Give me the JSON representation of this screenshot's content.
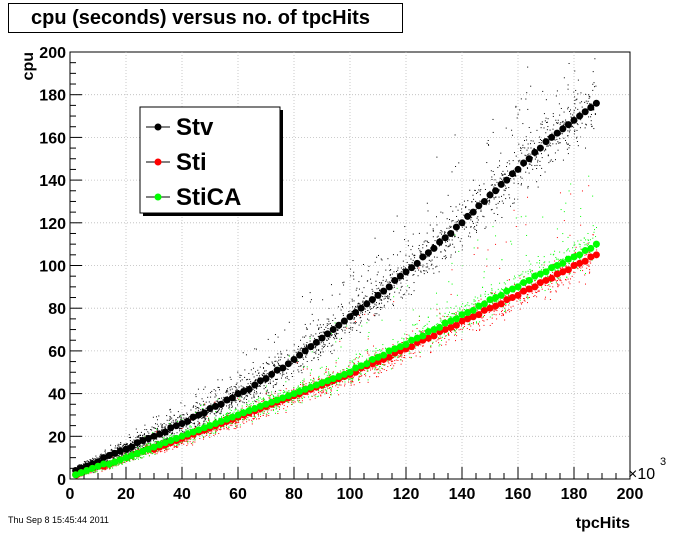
{
  "chart_data": {
    "type": "scatter",
    "title": "cpu (seconds) versus no. of tpcHits",
    "xlabel": "tpcHits",
    "ylabel": "cpu",
    "x_multiplier_label": "×10",
    "x_multiplier_exp": "3",
    "xlim": [
      0,
      200
    ],
    "ylim": [
      0,
      200
    ],
    "x_ticks": [
      0,
      20,
      40,
      60,
      80,
      100,
      120,
      140,
      160,
      180,
      200
    ],
    "y_ticks": [
      0,
      20,
      40,
      60,
      80,
      100,
      120,
      140,
      160,
      180,
      200
    ],
    "grid": true,
    "legend_position": "top-left",
    "series": [
      {
        "name": "Stv",
        "color": "#000000",
        "x": [
          2,
          4,
          6,
          8,
          10,
          12,
          14,
          16,
          18,
          20,
          22,
          24,
          26,
          28,
          30,
          32,
          34,
          36,
          38,
          40,
          42,
          44,
          46,
          48,
          50,
          52,
          54,
          56,
          58,
          60,
          62,
          64,
          66,
          68,
          70,
          72,
          74,
          76,
          78,
          80,
          82,
          84,
          86,
          88,
          90,
          92,
          94,
          96,
          98,
          100,
          102,
          104,
          106,
          108,
          110,
          112,
          114,
          116,
          118,
          120,
          122,
          124,
          126,
          128,
          130,
          132,
          134,
          136,
          138,
          140,
          142,
          144,
          146,
          148,
          150,
          152,
          154,
          156,
          158,
          160,
          162,
          164,
          166,
          168,
          170,
          172,
          174,
          176,
          178,
          180,
          182,
          184,
          186,
          188
        ],
        "y": [
          4,
          5,
          6,
          7,
          8,
          10,
          11,
          12,
          13,
          14,
          15,
          17,
          18,
          19,
          20,
          21,
          22,
          24,
          25,
          26,
          27,
          29,
          30,
          31,
          33,
          34,
          35,
          37,
          38,
          40,
          41,
          42,
          44,
          46,
          47,
          49,
          51,
          52,
          54,
          56,
          58,
          60,
          62,
          64,
          66,
          68,
          70,
          72,
          74,
          76,
          78,
          80,
          82,
          84,
          86,
          88,
          90,
          93,
          95,
          97,
          99,
          101,
          104,
          106,
          108,
          111,
          113,
          115,
          118,
          120,
          123,
          125,
          128,
          130,
          133,
          135,
          138,
          140,
          143,
          145,
          148,
          150,
          153,
          155,
          158,
          160,
          162,
          164,
          166,
          168,
          170,
          172,
          174,
          176
        ],
        "err": [
          1,
          1,
          1,
          1,
          1,
          1,
          1,
          1,
          1,
          1,
          1,
          1,
          1,
          1,
          1,
          1,
          1,
          1,
          1,
          1,
          1,
          1,
          1,
          1,
          1,
          1,
          1,
          1,
          1,
          1,
          1,
          1,
          1,
          1,
          1,
          1,
          1,
          1,
          1,
          1,
          1,
          1,
          1,
          1,
          1,
          1,
          1,
          1,
          1,
          1,
          1,
          1,
          1,
          1,
          1,
          1,
          1,
          1,
          1,
          1,
          1,
          1,
          1,
          1,
          1,
          1,
          1,
          1,
          1,
          1,
          1,
          1,
          1,
          1,
          1,
          1,
          1,
          1,
          1,
          1,
          1,
          1,
          1,
          1,
          1,
          1,
          1,
          1,
          1,
          1,
          1,
          1,
          1,
          1
        ]
      },
      {
        "name": "Sti",
        "color": "#ff0000",
        "x": [
          2,
          4,
          6,
          8,
          10,
          12,
          14,
          16,
          18,
          20,
          22,
          24,
          26,
          28,
          30,
          32,
          34,
          36,
          38,
          40,
          42,
          44,
          46,
          48,
          50,
          52,
          54,
          56,
          58,
          60,
          62,
          64,
          66,
          68,
          70,
          72,
          74,
          76,
          78,
          80,
          82,
          84,
          86,
          88,
          90,
          92,
          94,
          96,
          98,
          100,
          102,
          104,
          106,
          108,
          110,
          112,
          114,
          116,
          118,
          120,
          122,
          124,
          126,
          128,
          130,
          132,
          134,
          136,
          138,
          140,
          142,
          144,
          146,
          148,
          150,
          152,
          154,
          156,
          158,
          160,
          162,
          164,
          166,
          168,
          170,
          172,
          174,
          176,
          178,
          180,
          182,
          184,
          186,
          188
        ],
        "y": [
          2,
          3,
          4,
          5,
          6,
          6,
          7,
          8,
          9,
          10,
          11,
          12,
          13,
          14,
          14,
          15,
          16,
          17,
          18,
          19,
          20,
          21,
          22,
          23,
          24,
          25,
          26,
          27,
          28,
          29,
          30,
          31,
          32,
          33,
          34,
          35,
          36,
          37,
          38,
          39,
          40,
          41,
          42,
          43,
          44,
          45,
          46,
          47,
          48,
          49,
          50,
          52,
          53,
          54,
          55,
          56,
          57,
          59,
          60,
          61,
          62,
          64,
          65,
          66,
          67,
          69,
          70,
          71,
          72,
          74,
          75,
          76,
          77,
          79,
          80,
          81,
          82,
          84,
          85,
          86,
          88,
          89,
          90,
          92,
          93,
          94,
          96,
          97,
          98,
          100,
          101,
          102,
          104,
          105
        ],
        "err": [
          1,
          1,
          1,
          1,
          1,
          1,
          1,
          1,
          1,
          1,
          1,
          1,
          1,
          1,
          1,
          1,
          1,
          1,
          1,
          1,
          1,
          1,
          1,
          1,
          1,
          1,
          1,
          1,
          1,
          1,
          1,
          1,
          1,
          1,
          1,
          1,
          1,
          1,
          1,
          1,
          1,
          1,
          1,
          1,
          1,
          1,
          1,
          1,
          1,
          1,
          1,
          1,
          1,
          1,
          1,
          1,
          1,
          1,
          1,
          1,
          1,
          1,
          1,
          1,
          1,
          1,
          1,
          1,
          1,
          1,
          1,
          1,
          1,
          1,
          1,
          1,
          1,
          1,
          1,
          1,
          1,
          1,
          1,
          1,
          1,
          1,
          1,
          1,
          1,
          1,
          1,
          1,
          1,
          1
        ]
      },
      {
        "name": "StiCA",
        "color": "#00ff00",
        "x": [
          2,
          4,
          6,
          8,
          10,
          12,
          14,
          16,
          18,
          20,
          22,
          24,
          26,
          28,
          30,
          32,
          34,
          36,
          38,
          40,
          42,
          44,
          46,
          48,
          50,
          52,
          54,
          56,
          58,
          60,
          62,
          64,
          66,
          68,
          70,
          72,
          74,
          76,
          78,
          80,
          82,
          84,
          86,
          88,
          90,
          92,
          94,
          96,
          98,
          100,
          102,
          104,
          106,
          108,
          110,
          112,
          114,
          116,
          118,
          120,
          122,
          124,
          126,
          128,
          130,
          132,
          134,
          136,
          138,
          140,
          142,
          144,
          146,
          148,
          150,
          152,
          154,
          156,
          158,
          160,
          162,
          164,
          166,
          168,
          170,
          172,
          174,
          176,
          178,
          180,
          182,
          184,
          186,
          188
        ],
        "y": [
          2,
          3,
          4,
          5,
          6,
          7,
          7,
          8,
          9,
          10,
          11,
          12,
          13,
          14,
          15,
          16,
          17,
          18,
          19,
          20,
          21,
          22,
          23,
          24,
          25,
          26,
          27,
          28,
          29,
          30,
          31,
          32,
          33,
          34,
          35,
          36,
          37,
          38,
          39,
          40,
          41,
          42,
          43,
          44,
          45,
          46,
          47,
          48,
          49,
          50,
          52,
          53,
          54,
          56,
          57,
          58,
          60,
          61,
          62,
          63,
          65,
          66,
          67,
          69,
          70,
          71,
          73,
          74,
          75,
          77,
          78,
          79,
          81,
          82,
          84,
          85,
          86,
          88,
          89,
          90,
          92,
          93,
          95,
          96,
          97,
          99,
          100,
          101,
          103,
          104,
          105,
          107,
          108,
          110
        ],
        "err": [
          1,
          1,
          1,
          1,
          1,
          1,
          1,
          1,
          1,
          1,
          1,
          1,
          1,
          1,
          1,
          1,
          1,
          1,
          1,
          1,
          1,
          1,
          1,
          1,
          1,
          1,
          1,
          1,
          1,
          1,
          1,
          1,
          1,
          1,
          1,
          1,
          1,
          1,
          1,
          1,
          1,
          1,
          1,
          1,
          1,
          1,
          1,
          1,
          1,
          1,
          1,
          1,
          1,
          1,
          1,
          1,
          1,
          1,
          1,
          1,
          1,
          1,
          1,
          1,
          1,
          1,
          1,
          1,
          1,
          1,
          1,
          1,
          1,
          1,
          1,
          1,
          1,
          1,
          1,
          1,
          1,
          1,
          1,
          1,
          1,
          1,
          1,
          1,
          1,
          1,
          1,
          1,
          1,
          1
        ]
      }
    ]
  },
  "timestamp": "Thu Sep  8 15:45:44 2011"
}
